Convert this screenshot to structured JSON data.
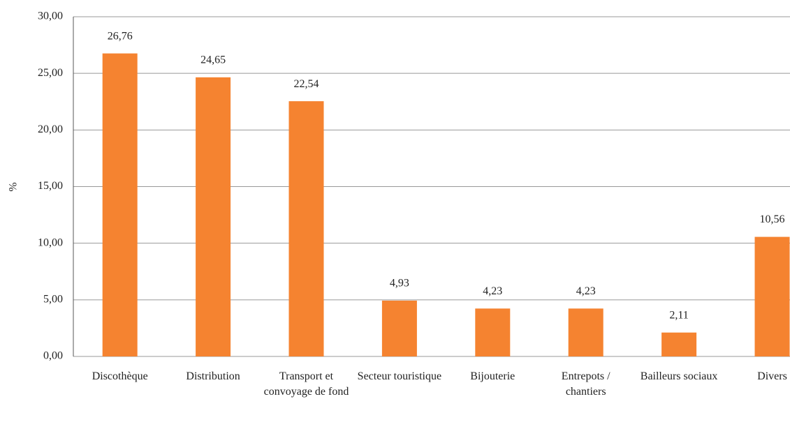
{
  "chart_data": {
    "type": "bar",
    "y_label": "%",
    "categories": [
      "Discothèque",
      "Distribution",
      "Transport et convoyage de fond",
      "Secteur touristique",
      "Bijouterie",
      "Entrepots / chantiers",
      "Bailleurs sociaux",
      "Divers"
    ],
    "values": [
      26.76,
      24.65,
      22.54,
      4.93,
      4.23,
      4.23,
      2.11,
      10.56
    ],
    "value_labels": [
      "26,76",
      "24,65",
      "22,54",
      "4,93",
      "4,23",
      "4,23",
      "2,11",
      "10,56"
    ],
    "color": "#f58330",
    "ylim": [
      0,
      30
    ],
    "yticks": [
      {
        "value": 0,
        "label": "0,00"
      },
      {
        "value": 5,
        "label": "5,00"
      },
      {
        "value": 10,
        "label": "10,00"
      },
      {
        "value": 15,
        "label": "15,00"
      },
      {
        "value": 20,
        "label": "20,00"
      },
      {
        "value": 25,
        "label": "25,00"
      },
      {
        "value": 30,
        "label": "30,00"
      }
    ],
    "grid": true
  }
}
